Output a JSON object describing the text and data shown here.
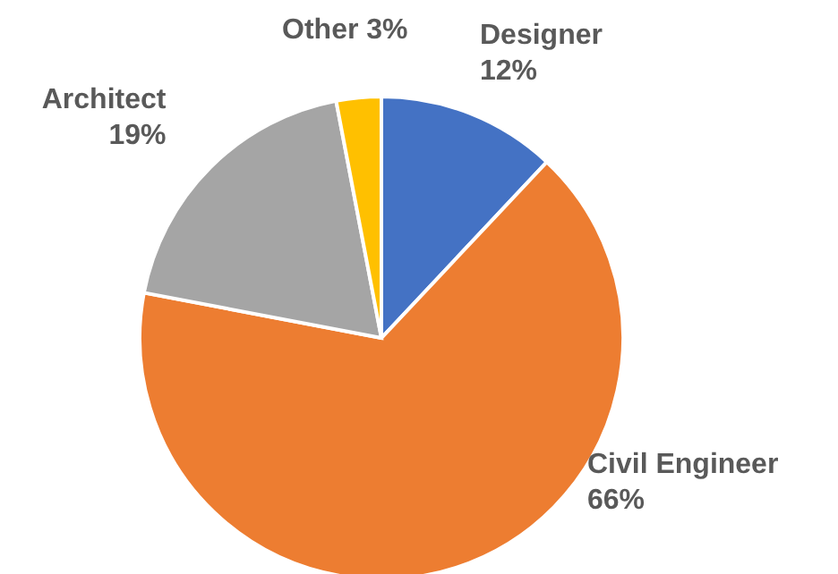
{
  "chart_data": {
    "type": "pie",
    "categories": [
      "Designer",
      "Civil Engineer",
      "Architect",
      "Other"
    ],
    "values": [
      12,
      66,
      19,
      3
    ],
    "colors": [
      "#4472c4",
      "#ed7d31",
      "#a5a5a5",
      "#ffc000"
    ],
    "value_labels": [
      "12%",
      "66%",
      "19%",
      "3%"
    ],
    "legend": false
  }
}
